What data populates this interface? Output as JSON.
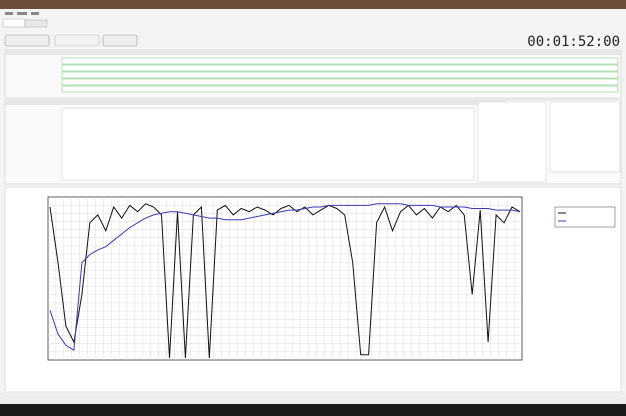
{
  "header": {
    "timer": "00:01:52:00"
  },
  "chart_data": {
    "type": "line",
    "ylim": [
      0,
      100
    ],
    "series": [
      {
        "color": "#111111",
        "values": [
          95,
          60,
          20,
          10,
          40,
          85,
          90,
          80,
          95,
          88,
          96,
          92,
          97,
          95,
          90,
          0,
          92,
          0,
          90,
          95,
          0,
          93,
          96,
          90,
          94,
          92,
          95,
          93,
          90,
          94,
          96,
          92,
          95,
          90,
          93,
          96,
          94,
          90,
          60,
          2,
          2,
          85,
          95,
          80,
          92,
          96,
          90,
          94,
          88,
          95,
          92,
          96,
          90,
          40,
          93,
          10,
          90,
          85,
          95,
          92
        ]
      },
      {
        "color": "#3b3bb0",
        "values": [
          30,
          15,
          8,
          5,
          60,
          65,
          68,
          70,
          74,
          78,
          82,
          85,
          88,
          90,
          91,
          92,
          92,
          91,
          90,
          89,
          88,
          88,
          87,
          87,
          87,
          88,
          89,
          90,
          91,
          92,
          93,
          93,
          94,
          95,
          95,
          96,
          96,
          96,
          96,
          96,
          96,
          97,
          97,
          97,
          97,
          96,
          96,
          96,
          96,
          95,
          95,
          95,
          95,
          94,
          94,
          94,
          93,
          93,
          93,
          92
        ]
      }
    ]
  }
}
